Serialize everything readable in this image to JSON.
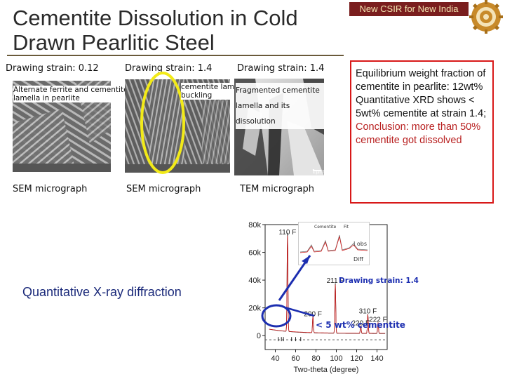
{
  "header": {
    "title_line1": "Cementite Dissolution in Cold",
    "title_line2": "Drawn Pearlitic Steel",
    "brand_text": "New CSIR for New India"
  },
  "columns": [
    {
      "strain_label": "Drawing strain: 0.12",
      "overlay_text_line1": "Alternate ferrite and cementite",
      "overlay_text_line2": "lamella in pearlite",
      "micrograph_caption": "SEM micrograph"
    },
    {
      "strain_label": "Drawing strain: 1.4",
      "overlay_text_line1": "cementite lamellae",
      "overlay_text_line2": "buckling",
      "micrograph_caption": "SEM micrograph"
    },
    {
      "strain_label": "Drawing strain: 1.4",
      "overlay_text_line1": "Fragmented cementite",
      "overlay_text_line2": "lamella and  its",
      "overlay_text_line3": "dissolution",
      "micrograph_caption": "TEM micrograph",
      "scale_bar_label": "1µm"
    }
  ],
  "conclusion_box": {
    "line1": "Equilibrium weight fraction of cementite in pearlite: 12wt%",
    "line2": "Quantitative XRD shows < 5wt% cementite at strain 1.4;",
    "line3": "Conclusion: more than 50% cementite got dissolved"
  },
  "xrd": {
    "section_label": "Quantitative X-ray diffraction",
    "strain_note": "Drawing strain: 1.4",
    "cementite_note": "< 5 wt% cementite",
    "legend_cementite": "Cementite",
    "legend_fit": "Fit",
    "legend_diff": "Diff",
    "legend_obs": "I obs"
  },
  "chart_data": {
    "type": "line",
    "xlabel": "Two-theta (degree)",
    "ylabel": "",
    "xlim": [
      30,
      150
    ],
    "ylim": [
      -10000,
      80000
    ],
    "x_ticks": [
      40,
      60,
      80,
      100,
      120,
      140
    ],
    "y_ticks": [
      0,
      20000,
      40000,
      60000,
      80000
    ],
    "x_tick_labels": [
      "40",
      "60",
      "80",
      "100",
      "120",
      "140"
    ],
    "y_tick_labels": [
      "0",
      "20k",
      "40k",
      "60k",
      "80k"
    ],
    "peaks": [
      {
        "label": "110 F",
        "two_theta": 52,
        "intensity": 71000
      },
      {
        "label": "200 F",
        "two_theta": 77,
        "intensity": 12000
      },
      {
        "label": "211 F",
        "two_theta": 99,
        "intensity": 36000
      },
      {
        "label": "220 F",
        "two_theta": 124,
        "intensity": 5500
      },
      {
        "label": "310 F",
        "two_theta": 131,
        "intensity": 14000
      },
      {
        "label": "222 F",
        "two_theta": 141,
        "intensity": 8000
      }
    ],
    "series": [
      {
        "name": "Cementite",
        "color": "#111111"
      },
      {
        "name": "Fit",
        "color": "#d42020"
      }
    ]
  },
  "colors": {
    "title": "#2a2a2a",
    "brand_bg": "#7a1e1e",
    "brand_text": "#f3e4b0",
    "panel_border": "#d81818",
    "conclusion": "#b82020",
    "blue_note": "#1c2eb0",
    "yellow_oval": "#f2ea18"
  }
}
